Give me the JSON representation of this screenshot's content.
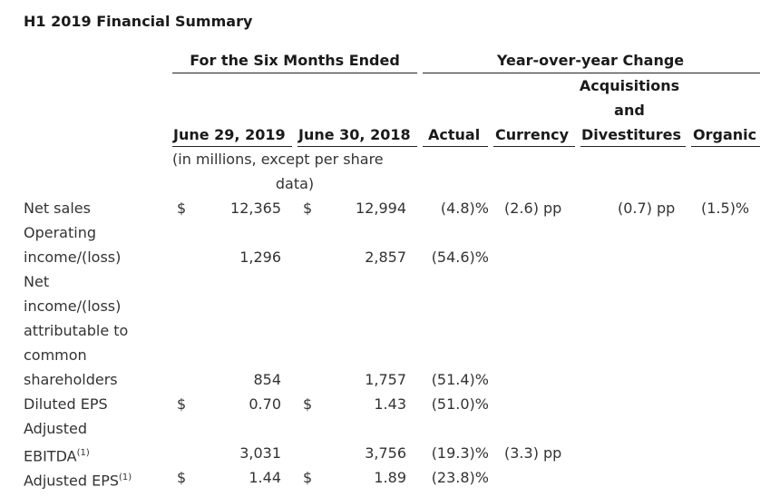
{
  "title": "H1 2019 Financial Summary",
  "headers": {
    "period_group": "For the Six Months Ended",
    "yoy_group": "Year-over-year Change",
    "acq_line1": "Acquisitions",
    "acq_line2": "and",
    "col_2019": "June 29, 2019",
    "col_2018": "June 30, 2018",
    "col_actual": "Actual",
    "col_currency": "Currency",
    "col_divest": "Divestitures",
    "col_organic": "Organic",
    "units_line1": "(in millions, except per share",
    "units_line2": "data)"
  },
  "currency_symbol": "$",
  "rows": [
    {
      "label": [
        "Net sales"
      ],
      "v2019": "12,365",
      "v2018": "12,994",
      "actual": "(4.8)%",
      "currency": "(2.6) pp",
      "acq": "(0.7) pp",
      "organic": "(1.5)%"
    },
    {
      "label": [
        "Operating",
        "income/(loss)"
      ],
      "v2019": "1,296",
      "v2018": "2,857",
      "actual": "(54.6)%"
    },
    {
      "label": [
        "Net",
        "income/(loss)",
        "attributable to",
        "common",
        "shareholders"
      ],
      "v2019": "854",
      "v2018": "1,757",
      "actual": "(51.4)%"
    },
    {
      "label": [
        "Diluted EPS"
      ],
      "v2019": "0.70",
      "v2018": "1.43",
      "actual": "(51.0)%"
    },
    {
      "label": [
        "Adjusted",
        "EBITDA"
      ],
      "sup": "(1)",
      "v2019": "3,031",
      "v2018": "3,756",
      "actual": "(19.3)%",
      "currency": "(3.3) pp"
    },
    {
      "label": [
        "Adjusted EPS"
      ],
      "sup": "(1)",
      "v2019": "1.44",
      "v2018": "1.89",
      "actual": "(23.8)%"
    }
  ]
}
